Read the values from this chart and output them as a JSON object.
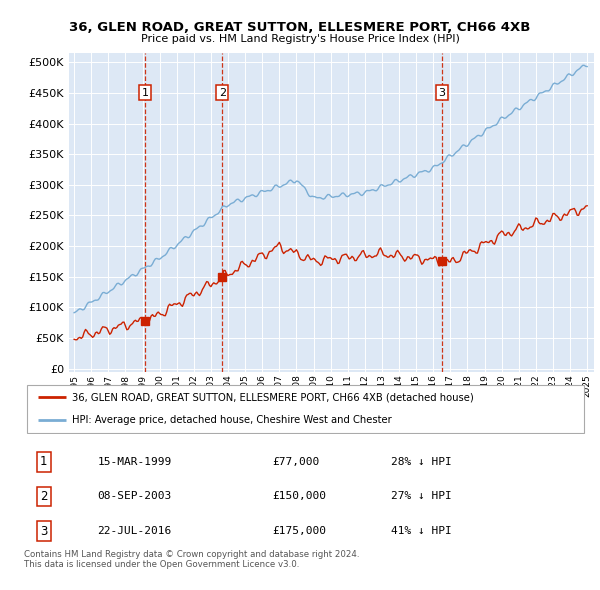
{
  "title": "36, GLEN ROAD, GREAT SUTTON, ELLESMERE PORT, CH66 4XB",
  "subtitle": "Price paid vs. HM Land Registry's House Price Index (HPI)",
  "hpi_color": "#7aadd4",
  "price_color": "#cc2200",
  "dashed_color": "#cc2200",
  "background_color": "#ffffff",
  "plot_bg_color": "#dde8f5",
  "grid_color": "#ffffff",
  "yticks": [
    0,
    50000,
    100000,
    150000,
    200000,
    250000,
    300000,
    350000,
    400000,
    450000,
    500000
  ],
  "sale_points": [
    {
      "date": "1999-03-15",
      "price": 77000,
      "label": "1"
    },
    {
      "date": "2003-09-08",
      "price": 150000,
      "label": "2"
    },
    {
      "date": "2016-07-22",
      "price": 175000,
      "label": "3"
    }
  ],
  "legend_entries": [
    "36, GLEN ROAD, GREAT SUTTON, ELLESMERE PORT, CH66 4XB (detached house)",
    "HPI: Average price, detached house, Cheshire West and Chester"
  ],
  "table_entries": [
    {
      "num": "1",
      "date": "15-MAR-1999",
      "price": "£77,000",
      "note": "28% ↓ HPI"
    },
    {
      "num": "2",
      "date": "08-SEP-2003",
      "price": "£150,000",
      "note": "27% ↓ HPI"
    },
    {
      "num": "3",
      "date": "22-JUL-2016",
      "price": "£175,000",
      "note": "41% ↓ HPI"
    }
  ],
  "footer": "Contains HM Land Registry data © Crown copyright and database right 2024.\nThis data is licensed under the Open Government Licence v3.0.",
  "xstart_year": 1995,
  "xend_year": 2025
}
